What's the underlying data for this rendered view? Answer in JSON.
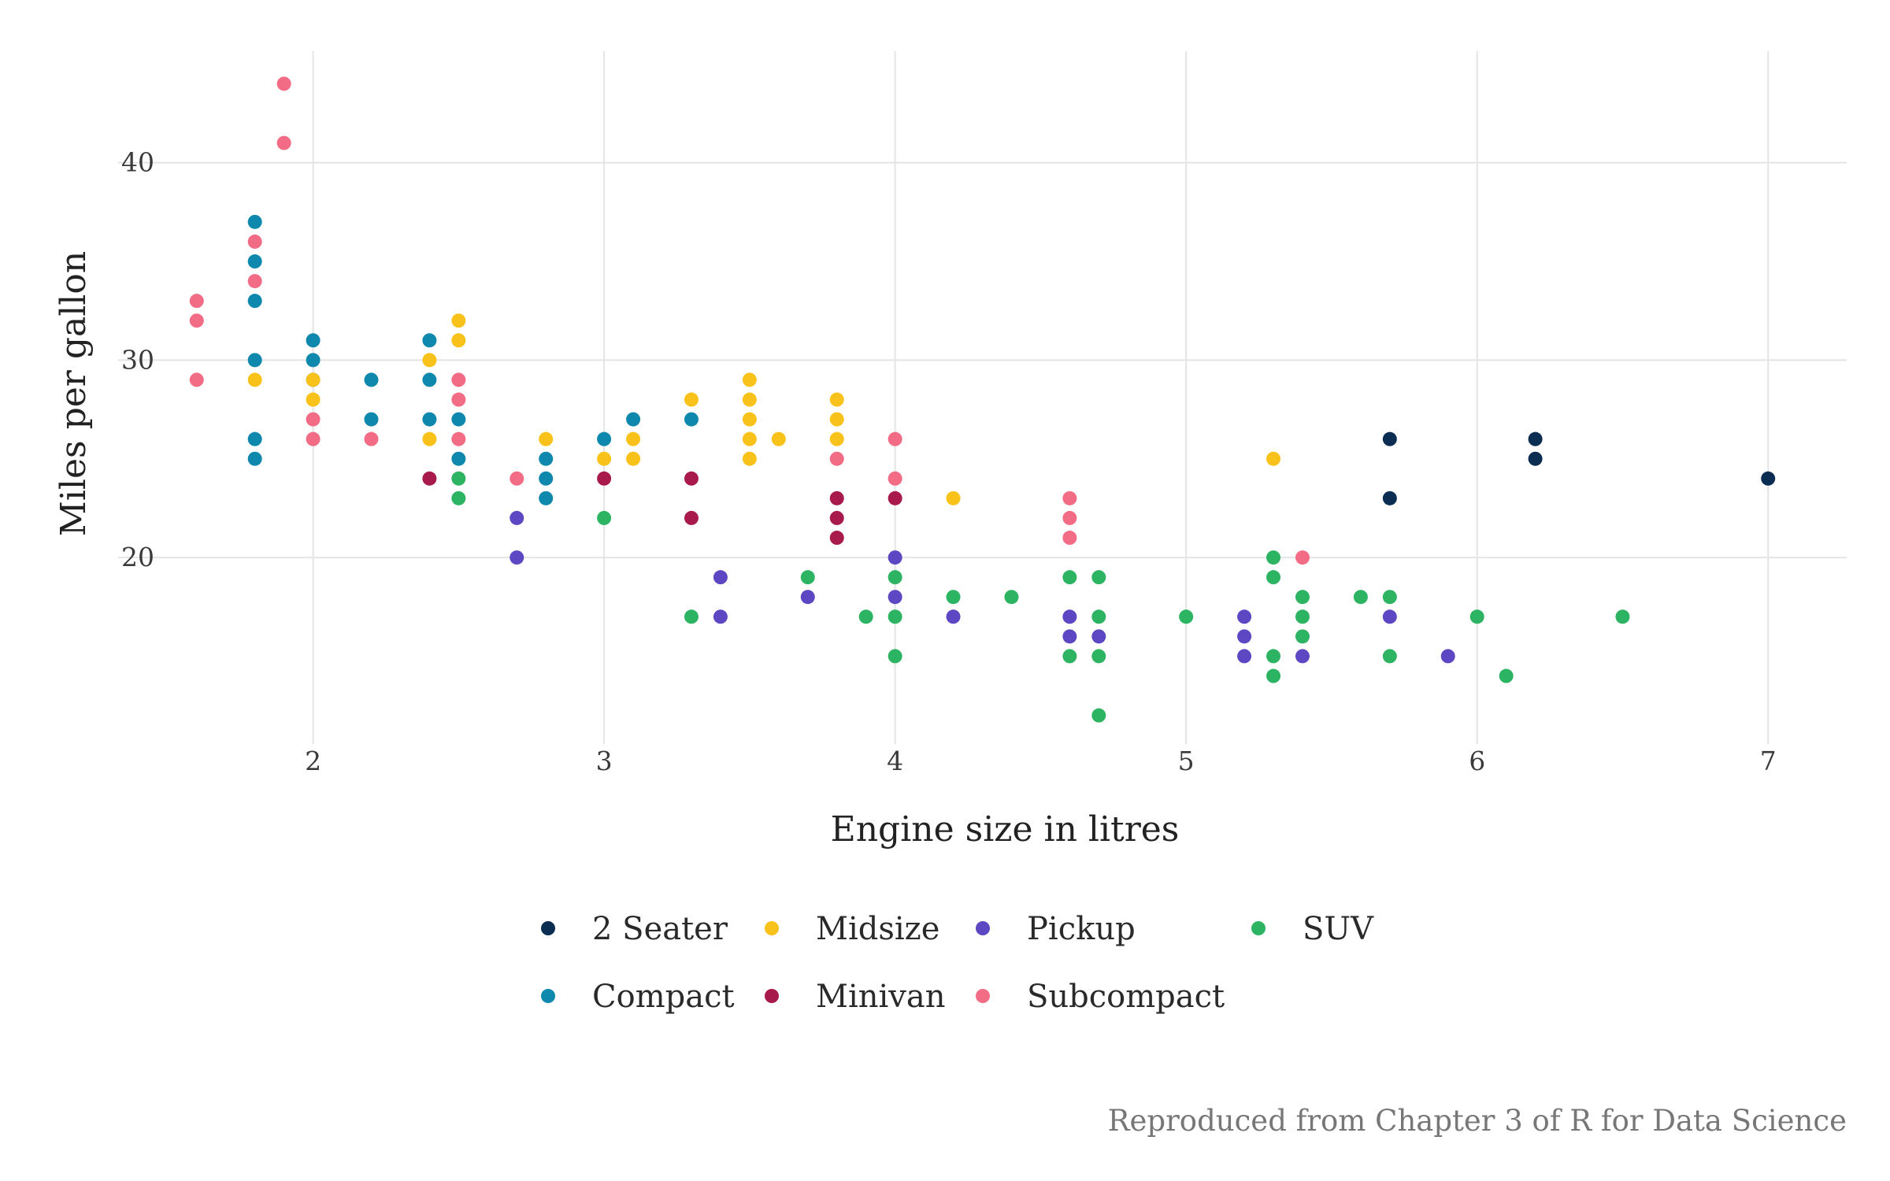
{
  "chart_data": {
    "type": "scatter",
    "title": "",
    "xlabel": "Engine size in litres",
    "ylabel": "Miles per gallon",
    "caption": "Reproduced from Chapter 3 of R for Data Science",
    "xlim": [
      1.33,
      7.27
    ],
    "ylim": [
      10.55,
      45.65
    ],
    "x_ticks": [
      2,
      3,
      4,
      5,
      6,
      7
    ],
    "y_ticks": [
      20,
      30,
      40
    ],
    "grid": true,
    "legend_position": "bottom",
    "series": [
      {
        "name": "2 Seater",
        "color": "#0b2d52",
        "points": [
          [
            5.7,
            26
          ],
          [
            5.7,
            23
          ],
          [
            6.2,
            26
          ],
          [
            6.2,
            25
          ],
          [
            7.0,
            24
          ]
        ]
      },
      {
        "name": "Compact",
        "color": "#0e88ad",
        "points": [
          [
            1.8,
            37
          ],
          [
            1.8,
            35
          ],
          [
            1.8,
            33
          ],
          [
            1.8,
            30
          ],
          [
            1.8,
            26
          ],
          [
            1.8,
            25
          ],
          [
            2.0,
            31
          ],
          [
            2.0,
            30
          ],
          [
            2.0,
            29
          ],
          [
            2.2,
            29
          ],
          [
            2.2,
            27
          ],
          [
            2.4,
            31
          ],
          [
            2.4,
            29
          ],
          [
            2.4,
            27
          ],
          [
            2.5,
            27
          ],
          [
            2.5,
            25
          ],
          [
            2.8,
            25
          ],
          [
            2.8,
            24
          ],
          [
            2.8,
            23
          ],
          [
            3.0,
            26
          ],
          [
            3.1,
            27
          ],
          [
            3.3,
            27
          ]
        ]
      },
      {
        "name": "Midsize",
        "color": "#f9c21a",
        "points": [
          [
            1.8,
            29
          ],
          [
            2.0,
            29
          ],
          [
            2.0,
            28
          ],
          [
            2.4,
            30
          ],
          [
            2.4,
            26
          ],
          [
            2.5,
            32
          ],
          [
            2.5,
            31
          ],
          [
            2.8,
            26
          ],
          [
            3.0,
            25
          ],
          [
            3.1,
            26
          ],
          [
            3.1,
            25
          ],
          [
            3.3,
            28
          ],
          [
            3.5,
            29
          ],
          [
            3.5,
            28
          ],
          [
            3.5,
            27
          ],
          [
            3.5,
            26
          ],
          [
            3.5,
            25
          ],
          [
            3.6,
            26
          ],
          [
            3.8,
            28
          ],
          [
            3.8,
            27
          ],
          [
            3.8,
            26
          ],
          [
            4.2,
            23
          ],
          [
            5.3,
            25
          ]
        ]
      },
      {
        "name": "Minivan",
        "color": "#a91a4c",
        "points": [
          [
            2.4,
            24
          ],
          [
            3.0,
            24
          ],
          [
            3.3,
            24
          ],
          [
            3.3,
            22
          ],
          [
            3.8,
            23
          ],
          [
            3.8,
            22
          ],
          [
            3.8,
            21
          ],
          [
            4.0,
            23
          ]
        ]
      },
      {
        "name": "Pickup",
        "color": "#5e47c2",
        "points": [
          [
            2.7,
            22
          ],
          [
            2.7,
            20
          ],
          [
            3.4,
            19
          ],
          [
            3.4,
            17
          ],
          [
            3.7,
            18
          ],
          [
            4.0,
            20
          ],
          [
            4.0,
            18
          ],
          [
            4.2,
            17
          ],
          [
            4.6,
            17
          ],
          [
            4.6,
            16
          ],
          [
            4.7,
            16
          ],
          [
            5.2,
            17
          ],
          [
            5.2,
            16
          ],
          [
            5.2,
            15
          ],
          [
            5.4,
            15
          ],
          [
            5.7,
            17
          ],
          [
            5.9,
            15
          ]
        ]
      },
      {
        "name": "Subcompact",
        "color": "#f26c85",
        "points": [
          [
            1.6,
            33
          ],
          [
            1.6,
            32
          ],
          [
            1.6,
            29
          ],
          [
            1.8,
            36
          ],
          [
            1.8,
            34
          ],
          [
            1.9,
            44
          ],
          [
            1.9,
            41
          ],
          [
            2.0,
            27
          ],
          [
            2.0,
            26
          ],
          [
            2.2,
            26
          ],
          [
            2.5,
            29
          ],
          [
            2.5,
            28
          ],
          [
            2.5,
            26
          ],
          [
            2.7,
            24
          ],
          [
            3.8,
            25
          ],
          [
            4.0,
            26
          ],
          [
            4.0,
            24
          ],
          [
            4.6,
            23
          ],
          [
            4.6,
            22
          ],
          [
            4.6,
            21
          ],
          [
            5.4,
            20
          ]
        ]
      },
      {
        "name": "SUV",
        "color": "#2db462",
        "points": [
          [
            2.5,
            24
          ],
          [
            2.5,
            23
          ],
          [
            3.0,
            22
          ],
          [
            3.3,
            17
          ],
          [
            3.7,
            19
          ],
          [
            3.9,
            17
          ],
          [
            4.0,
            19
          ],
          [
            4.0,
            17
          ],
          [
            4.0,
            15
          ],
          [
            4.2,
            18
          ],
          [
            4.4,
            18
          ],
          [
            4.6,
            19
          ],
          [
            4.6,
            15
          ],
          [
            4.7,
            19
          ],
          [
            4.7,
            17
          ],
          [
            4.7,
            15
          ],
          [
            4.7,
            12
          ],
          [
            5.0,
            17
          ],
          [
            5.3,
            20
          ],
          [
            5.3,
            19
          ],
          [
            5.3,
            15
          ],
          [
            5.3,
            14
          ],
          [
            5.4,
            18
          ],
          [
            5.4,
            17
          ],
          [
            5.4,
            16
          ],
          [
            5.6,
            18
          ],
          [
            5.7,
            18
          ],
          [
            5.7,
            15
          ],
          [
            6.0,
            17
          ],
          [
            6.1,
            14
          ],
          [
            6.5,
            17
          ]
        ]
      }
    ],
    "legend_order": [
      "2 Seater",
      "Compact",
      "Midsize",
      "Minivan",
      "Pickup",
      "Subcompact",
      "SUV"
    ]
  }
}
